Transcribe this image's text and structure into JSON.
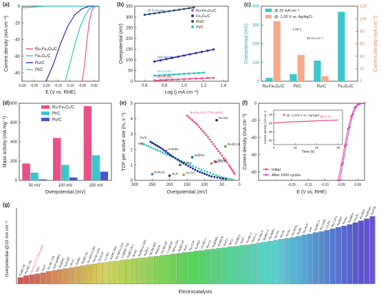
{
  "panels": {
    "a": {
      "letter": "(a)",
      "chart_data": {
        "type": "line",
        "xlabel": "E (V vs. RHE)",
        "ylabel": "Current density (mA cm⁻²)",
        "xlim": [
          -0.3,
          0.02
        ],
        "ylim": [
          -90,
          0
        ],
        "xticks": [
          -0.3,
          -0.25,
          -0.2,
          -0.15,
          -0.1,
          -0.05,
          0.0
        ],
        "yticks": [
          -80,
          -60,
          -40,
          -20,
          0
        ],
        "series": [
          {
            "name": "Ru-Fe₃O₄/C",
            "color": "#e8508a",
            "points": [
              [
                -0.05,
                -90
              ],
              [
                -0.04,
                -70
              ],
              [
                -0.03,
                -40
              ],
              [
                -0.02,
                -18
              ],
              [
                -0.01,
                -5
              ],
              [
                0.0,
                -1
              ],
              [
                0.02,
                0
              ]
            ]
          },
          {
            "name": "Fe₃O₄/C",
            "color": "#26c4b8",
            "points": [
              [
                -0.3,
                -2
              ],
              [
                -0.25,
                -1
              ],
              [
                -0.2,
                0
              ],
              [
                0.0,
                0
              ],
              [
                0.02,
                0
              ]
            ]
          },
          {
            "name": "Ru/C",
            "color": "#2a2aa8",
            "points": [
              [
                -0.2,
                -90
              ],
              [
                -0.17,
                -70
              ],
              [
                -0.14,
                -45
              ],
              [
                -0.11,
                -24
              ],
              [
                -0.08,
                -10
              ],
              [
                -0.05,
                -3
              ],
              [
                -0.02,
                0
              ],
              [
                0.02,
                0
              ]
            ]
          },
          {
            "name": "Pt/C",
            "color": "#30c6b2",
            "points": [
              [
                -0.12,
                -90
              ],
              [
                -0.1,
                -68
              ],
              [
                -0.08,
                -46
              ],
              [
                -0.06,
                -26
              ],
              [
                -0.04,
                -12
              ],
              [
                -0.02,
                -3
              ],
              [
                0.0,
                0
              ],
              [
                0.02,
                0
              ]
            ]
          }
        ]
      }
    },
    "b": {
      "letter": "(b)",
      "chart_data": {
        "type": "line",
        "xlabel": "Log (j mA cm⁻²)",
        "ylabel": "Overpotential (mV)",
        "xlim": [
          0.5,
          1.45
        ],
        "ylim": [
          0,
          350
        ],
        "xticks": [
          0.6,
          0.8,
          1.0,
          1.2,
          1.4
        ],
        "yticks": [
          0,
          50,
          100,
          150,
          200,
          250,
          300,
          350
        ],
        "series": [
          {
            "name": "Ru-Fe₃O₄/C",
            "color": "#e8508a",
            "points": [
              [
                0.7,
                4
              ],
              [
                1.3,
                16
              ]
            ],
            "annotation": "28 mV dec⁻¹"
          },
          {
            "name": "Fe₃O₄/C",
            "color": "#2a2aa8",
            "points": [
              [
                0.7,
                92
              ],
              [
                1.3,
                148
              ]
            ],
            "annotation": "103 mV dec⁻¹"
          },
          {
            "name": "Ru/C",
            "color": "#2f4f6f",
            "points": [
              [
                0.6,
                310
              ],
              [
                1.1,
                344
              ]
            ],
            "annotation": "26.8 mV dec⁻¹"
          },
          {
            "name": "Pt/C",
            "color": "#26c4b8",
            "points": [
              [
                0.7,
                26
              ],
              [
                1.2,
                40
              ]
            ],
            "annotation": "32 mV dec⁻¹"
          }
        ],
        "extra_label": "29 mV dec⁻¹"
      }
    },
    "c": {
      "letter": "(c)",
      "chart_data": {
        "type": "bar",
        "categories": [
          "Ru-Fe₃O₄/C",
          "Pt/C",
          "Ru/C",
          "Fe₃O₄/C"
        ],
        "ylabel": "Overpotential (mV)",
        "y2label": "Current density (mA cm⁻²)",
        "ylim": [
          0,
          400
        ],
        "y2lim": [
          0,
          120
        ],
        "yticks": [
          0,
          100,
          200,
          300,
          400
        ],
        "y2ticks": [
          0,
          20,
          40,
          60,
          80,
          100,
          120
        ],
        "series": [
          {
            "name": "@ 20 mA cm⁻²",
            "color": "#3cc7cd",
            "axis": "left",
            "values": [
              18,
              38,
              110,
              370
            ]
          },
          {
            "name": "@ -1.00 V vs. Ag/AgCl",
            "color": "#f7a98a",
            "axis": "right",
            "values": [
              96,
              42,
              8,
              0
            ]
          }
        ],
        "annotations": [
          "1.58 V",
          "25 mA cm⁻²"
        ]
      }
    },
    "d": {
      "letter": "(d)",
      "chart_data": {
        "type": "bar",
        "categories": [
          "50 mV",
          "100 mV",
          "150 mV"
        ],
        "xlabel": "Overpotential (mV)",
        "ylabel": "Mass activity (mA mg⁻¹)",
        "ylim": [
          0,
          800
        ],
        "yticks": [
          0,
          200,
          400,
          600,
          800
        ],
        "series": [
          {
            "name": "Ru-Fe₃O₄/C",
            "color": "#e8508a",
            "values": [
              175,
              440,
              770
            ]
          },
          {
            "name": "Pt/C",
            "color": "#3cc7cd",
            "values": [
              80,
              160,
              260
            ]
          },
          {
            "name": "Ru/C",
            "color": "#4a57c9",
            "values": [
              10,
              30,
              90
            ]
          }
        ]
      }
    },
    "e": {
      "letter": "(e)",
      "chart_data": {
        "type": "scatter",
        "xlabel": "Overpotential (mV)",
        "ylabel": "TOF per active site (H₂ s⁻¹)",
        "xlim": [
          300,
          0
        ],
        "ylim": [
          0,
          5
        ],
        "xticks": [
          300,
          250,
          200,
          150,
          100,
          50,
          0
        ],
        "yticks": [
          0,
          1,
          2,
          3,
          4,
          5
        ],
        "series": [
          {
            "name": "Ru-Fe₃O₄/C (This work)",
            "color": "#e8508a",
            "points": [
              [
                150,
                4.2
              ],
              [
                120,
                3.6
              ],
              [
                90,
                2.8
              ],
              [
                60,
                1.9
              ],
              [
                30,
                1.0
              ],
              [
                10,
                0.3
              ]
            ]
          },
          {
            "name": "Pt/C",
            "color": "#30c6b2",
            "points": [
              [
                280,
                2.4
              ],
              [
                240,
                2.0
              ],
              [
                200,
                1.6
              ],
              [
                150,
                1.1
              ],
              [
                100,
                0.6
              ],
              [
                50,
                0.2
              ],
              [
                10,
                0
              ]
            ]
          },
          {
            "name": "Ru/C",
            "color": "#1f2a8a",
            "points": [
              [
                255,
                2.5
              ],
              [
                225,
                2.1
              ],
              [
                195,
                1.6
              ],
              [
                160,
                1.1
              ],
              [
                120,
                0.6
              ],
              [
                80,
                0.25
              ],
              [
                30,
                0.05
              ]
            ]
          }
        ],
        "labels": [
          {
            "text": "Ru-NC",
            "x": 65,
            "y": 3.9
          },
          {
            "text": "α-MoB₂",
            "x": 210,
            "y": 1.9
          },
          {
            "text": "Co-NG",
            "x": 170,
            "y": 1.0
          },
          {
            "text": "Ni@NC",
            "x": 135,
            "y": 1.5
          },
          {
            "text": "Ru@GnP",
            "x": 80,
            "y": 1.1
          },
          {
            "text": "Co-NC",
            "x": 68,
            "y": 1.2
          },
          {
            "text": "β-Mo₂N",
            "x": 250,
            "y": 0.4
          },
          {
            "text": "Ni₃P",
            "x": 200,
            "y": 0.3
          },
          {
            "text": "Au-Cd",
            "x": 160,
            "y": 0.35
          },
          {
            "text": "Ru@C₂N",
            "x": 40,
            "y": 2.2
          }
        ]
      }
    },
    "f": {
      "letter": "(f)",
      "chart_data": {
        "type": "line",
        "xlabel": "E (V vs. RHE)",
        "ylabel": "Current density (mA cm⁻²)",
        "xlim": [
          -0.3,
          0.02
        ],
        "ylim": [
          -90,
          0
        ],
        "xticks": [
          -0.2,
          -0.15,
          -0.1,
          -0.05,
          0.0
        ],
        "yticks": [
          -80,
          -60,
          -40,
          -20,
          0
        ],
        "series": [
          {
            "name": "Initial",
            "color": "#e8508a",
            "points": [
              [
                -0.06,
                -90
              ],
              [
                -0.05,
                -72
              ],
              [
                -0.04,
                -50
              ],
              [
                -0.03,
                -30
              ],
              [
                -0.02,
                -15
              ],
              [
                -0.01,
                -5
              ],
              [
                0.0,
                -1
              ],
              [
                0.02,
                0
              ]
            ]
          },
          {
            "name": "After 1000 cycles",
            "color": "#c24ad3",
            "points": [
              [
                -0.055,
                -90
              ],
              [
                -0.045,
                -70
              ],
              [
                -0.035,
                -48
              ],
              [
                -0.025,
                -28
              ],
              [
                -0.015,
                -13
              ],
              [
                -0.005,
                -4
              ],
              [
                0.005,
                -1
              ],
              [
                0.02,
                0
              ]
            ]
          }
        ],
        "inset": {
          "xlabel": "Time (h)",
          "ylabel": "Current density (mA cm⁻²)",
          "xticks": [
            0,
            10,
            20,
            30
          ],
          "yticks": [
            -10,
            -20,
            -30,
            -40
          ],
          "legend": "@ -1.075 V vs. Ag/AgCl",
          "retention": "96.5 %",
          "points": [
            [
              0,
              -20
            ],
            [
              5,
              -19
            ],
            [
              10,
              -18.5
            ],
            [
              15,
              -18
            ],
            [
              20,
              -17.5
            ],
            [
              25,
              -17
            ],
            [
              30,
              -16.5
            ]
          ]
        }
      }
    },
    "g": {
      "letter": "(g)",
      "chart_data": {
        "type": "bar",
        "xlabel": "Electrocatalysts",
        "ylabel": "Overpotential @10 mA cm⁻²",
        "ylim": [
          0,
          160
        ],
        "categories": [
          "Ru@C₂N",
          "Ru-NC-750",
          "Ru-Fe₃O₄/C (This work)",
          "Pt/C",
          "Ru₂P",
          "Ru-NC-700",
          "RuP₂@NPC",
          "Ru@NC",
          "Ru/CNT",
          "Rh₂P",
          "Ru/NC",
          "Ru@C₃N₄",
          "Ru-NiCo-LDH",
          "Ru-Ni-CoFe",
          "Ru/CoP",
          "Co-NG",
          "Ru/NC-650",
          "Ru-NiFe-LDH",
          "Co@NC-750",
          "Ru@C₂N-1",
          "Ni-NC",
          "Ru/NiCo-CNT",
          "Ru/N-C",
          "NC/Ni-NiO",
          "Pt/NCN",
          "Ru-NiCoP",
          "Co-NiFeP",
          "NiFe-LDH",
          "Ru@CoP",
          "Ru/C",
          "Ru-CoP",
          "Ru/NGr",
          "Co-NG-1",
          "Ru-Co",
          "Ru@NiS",
          "Ru/NCN",
          "Ru/Co",
          "NiCo",
          "Ru/NiCo",
          "Ru/P",
          "Ru-NC-1",
          "Ru/C-1",
          "Ru-Mo₂C",
          "Ru/NC-2",
          "Ru-NiMo",
          "Ru-Pd",
          "Ru-W",
          "Pt-Ru",
          "Ru-MoS₂",
          "Ru/Ni",
          "Ru-Ni₃P",
          "CoP",
          "Ru/NC-3",
          "Ru-CoNi",
          "Co-Ru",
          "Ru-CoFe",
          "Ru/NiO",
          "RuSe₂",
          "Ru/NiFe",
          "Ru₂B₃",
          "Ru-Ni₂P",
          "Ru/MoS₂",
          "Ru/TiN"
        ],
        "values": [
          13,
          17,
          19,
          21,
          23,
          26,
          28,
          30,
          32,
          34,
          36,
          38,
          40,
          42,
          44,
          45,
          47,
          48,
          50,
          51,
          53,
          54,
          55,
          57,
          58,
          60,
          61,
          63,
          64,
          66,
          67,
          69,
          70,
          72,
          73,
          75,
          76,
          78,
          79,
          81,
          82,
          84,
          86,
          88,
          90,
          92,
          94,
          96,
          98,
          100,
          103,
          105,
          108,
          110,
          113,
          116,
          119,
          122,
          125,
          129,
          133,
          137,
          142
        ]
      }
    }
  },
  "colors": {
    "pink": "#e8508a",
    "teal": "#26c4b8",
    "navy": "#2a2aa8",
    "cyan_bar": "#3cc7cd",
    "salmon_bar": "#f7a98a",
    "blue_bar": "#4a57c9",
    "magenta": "#c24ad3"
  }
}
